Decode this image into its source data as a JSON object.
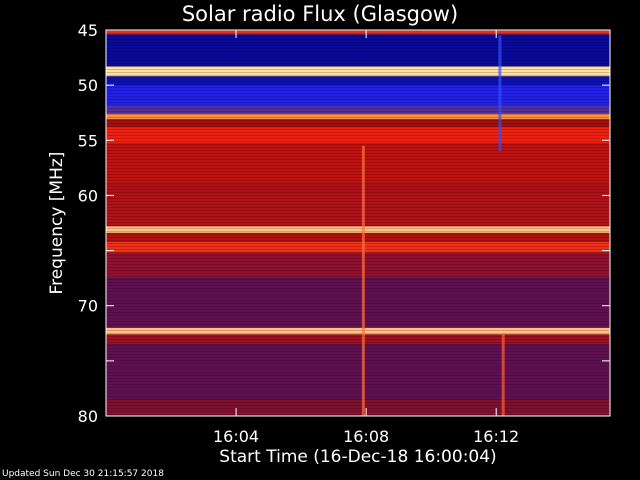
{
  "chart_data": {
    "type": "heatmap",
    "title": "Solar radio Flux (Glasgow)",
    "xlabel": "Start Time (16-Dec-18 16:00:04)",
    "ylabel_prefix": "Frequency ",
    "ylabel_unit": "MHz",
    "xlim_minutes": [
      0,
      15.5
    ],
    "ylim_mhz": [
      45,
      80
    ],
    "x_ticks": [
      {
        "value": 4,
        "label": "16:04"
      },
      {
        "value": 8,
        "label": "16:08"
      },
      {
        "value": 12,
        "label": "16:12"
      }
    ],
    "y_ticks": [
      {
        "value": 45,
        "label": "45"
      },
      {
        "value": 50,
        "label": "50"
      },
      {
        "value": 55,
        "label": "55"
      },
      {
        "value": 60,
        "label": "60"
      },
      {
        "value": 65,
        "label": ""
      },
      {
        "value": 70,
        "label": "70"
      },
      {
        "value": 75,
        "label": ""
      },
      {
        "value": 80,
        "label": "80"
      }
    ],
    "frequency_bands": [
      {
        "from": 45.0,
        "to": 45.4,
        "color": "#e03018"
      },
      {
        "from": 45.4,
        "to": 48.3,
        "color": "#0a0a9a"
      },
      {
        "from": 48.3,
        "to": 49.2,
        "color": "#ffe0a0"
      },
      {
        "from": 49.2,
        "to": 50.0,
        "color": "#1010b0"
      },
      {
        "from": 50.0,
        "to": 51.8,
        "color": "#2020e8"
      },
      {
        "from": 51.8,
        "to": 52.6,
        "color": "#5030a0"
      },
      {
        "from": 52.6,
        "to": 53.1,
        "color": "#ff9040"
      },
      {
        "from": 53.1,
        "to": 53.8,
        "color": "#a01010"
      },
      {
        "from": 53.8,
        "to": 55.3,
        "color": "#f02010"
      },
      {
        "from": 55.3,
        "to": 59.0,
        "color": "#c01010"
      },
      {
        "from": 59.0,
        "to": 62.8,
        "color": "#b01018"
      },
      {
        "from": 62.8,
        "to": 63.4,
        "color": "#ffc080"
      },
      {
        "from": 63.4,
        "to": 64.2,
        "color": "#b01010"
      },
      {
        "from": 64.2,
        "to": 65.2,
        "color": "#f03018"
      },
      {
        "from": 65.2,
        "to": 67.5,
        "color": "#901030"
      },
      {
        "from": 67.5,
        "to": 72.0,
        "color": "#601050"
      },
      {
        "from": 72.0,
        "to": 72.6,
        "color": "#ffc080"
      },
      {
        "from": 72.6,
        "to": 73.5,
        "color": "#a01020"
      },
      {
        "from": 73.5,
        "to": 78.5,
        "color": "#601050"
      },
      {
        "from": 78.5,
        "to": 80.0,
        "color": "#801030"
      }
    ],
    "bursts": [
      {
        "time": 7.9,
        "from": 55.5,
        "to": 80,
        "color": "#ff7040"
      },
      {
        "time": 12.1,
        "from": 45.5,
        "to": 56,
        "color": "#3050ff"
      },
      {
        "time": 12.2,
        "from": 72.5,
        "to": 80,
        "color": "#ff6030"
      }
    ],
    "colorbar": false
  },
  "footer": {
    "updated": "Updated Sun Dec 30 21:15:57 2018"
  }
}
